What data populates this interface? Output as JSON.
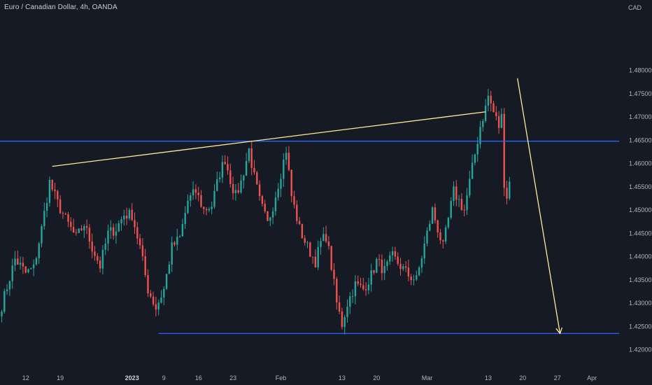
{
  "header": {
    "symbol_title": "Euro / Canadian Dollar, 4h, OANDA",
    "currency": "CAD"
  },
  "colors": {
    "background": "#161a25",
    "up": "#26a69a",
    "down": "#ef5350",
    "horizontal_line": "#2962ff",
    "trend_line": "#ffeb99",
    "text": "#b2b5be"
  },
  "chart_data": {
    "type": "candlestick",
    "title": "Euro / Canadian Dollar, 4h, OANDA",
    "y_unit": "CAD",
    "ylim": [
      1.418,
      1.4885
    ],
    "y_ticks": [
      "1.48000",
      "1.47500",
      "1.47000",
      "1.46500",
      "1.46000",
      "1.45500",
      "1.45000",
      "1.44500",
      "1.44000",
      "1.43500",
      "1.43000",
      "1.42500",
      "1.42000"
    ],
    "x_ticks": [
      {
        "label": "12",
        "idx": 9,
        "bold": false
      },
      {
        "label": "19",
        "idx": 22,
        "bold": false
      },
      {
        "label": "2023",
        "idx": 49,
        "bold": true
      },
      {
        "label": "9",
        "idx": 61,
        "bold": false
      },
      {
        "label": "16",
        "idx": 74,
        "bold": false
      },
      {
        "label": "23",
        "idx": 87,
        "bold": false
      },
      {
        "label": "Feb",
        "idx": 105,
        "bold": false
      },
      {
        "label": "13",
        "idx": 128,
        "bold": false
      },
      {
        "label": "20",
        "idx": 141,
        "bold": false
      },
      {
        "label": "Mar",
        "idx": 160,
        "bold": false
      },
      {
        "label": "13",
        "idx": 183,
        "bold": false
      },
      {
        "label": "20",
        "idx": 196,
        "bold": false
      },
      {
        "label": "27",
        "idx": 209,
        "bold": false
      },
      {
        "label": "Apr",
        "idx": 222,
        "bold": false
      }
    ],
    "anchors": [
      {
        "i": 0,
        "v": 1.4295
      },
      {
        "i": 5,
        "v": 1.4395
      },
      {
        "i": 9,
        "v": 1.4365
      },
      {
        "i": 12,
        "v": 1.4375
      },
      {
        "i": 15,
        "v": 1.446
      },
      {
        "i": 18,
        "v": 1.456
      },
      {
        "i": 21,
        "v": 1.4515
      },
      {
        "i": 24,
        "v": 1.448
      },
      {
        "i": 28,
        "v": 1.444
      },
      {
        "i": 31,
        "v": 1.447
      },
      {
        "i": 34,
        "v": 1.442
      },
      {
        "i": 37,
        "v": 1.438
      },
      {
        "i": 40,
        "v": 1.445
      },
      {
        "i": 43,
        "v": 1.446
      },
      {
        "i": 46,
        "v": 1.449
      },
      {
        "i": 49,
        "v": 1.449
      },
      {
        "i": 52,
        "v": 1.442
      },
      {
        "i": 55,
        "v": 1.433
      },
      {
        "i": 58,
        "v": 1.429
      },
      {
        "i": 61,
        "v": 1.433
      },
      {
        "i": 64,
        "v": 1.442
      },
      {
        "i": 67,
        "v": 1.444
      },
      {
        "i": 70,
        "v": 1.452
      },
      {
        "i": 73,
        "v": 1.454
      },
      {
        "i": 76,
        "v": 1.45
      },
      {
        "i": 79,
        "v": 1.451
      },
      {
        "i": 82,
        "v": 1.458
      },
      {
        "i": 84,
        "v": 1.461
      },
      {
        "i": 86,
        "v": 1.4565
      },
      {
        "i": 88,
        "v": 1.453
      },
      {
        "i": 90,
        "v": 1.456
      },
      {
        "i": 93,
        "v": 1.463
      },
      {
        "i": 95,
        "v": 1.457
      },
      {
        "i": 97,
        "v": 1.452
      },
      {
        "i": 100,
        "v": 1.447
      },
      {
        "i": 102,
        "v": 1.451
      },
      {
        "i": 105,
        "v": 1.458
      },
      {
        "i": 107,
        "v": 1.463
      },
      {
        "i": 109,
        "v": 1.453
      },
      {
        "i": 112,
        "v": 1.446
      },
      {
        "i": 115,
        "v": 1.442
      },
      {
        "i": 118,
        "v": 1.439
      },
      {
        "i": 120,
        "v": 1.443
      },
      {
        "i": 122,
        "v": 1.4445
      },
      {
        "i": 124,
        "v": 1.438
      },
      {
        "i": 126,
        "v": 1.43
      },
      {
        "i": 128,
        "v": 1.4255
      },
      {
        "i": 130,
        "v": 1.43
      },
      {
        "i": 133,
        "v": 1.434
      },
      {
        "i": 136,
        "v": 1.433
      },
      {
        "i": 139,
        "v": 1.436
      },
      {
        "i": 141,
        "v": 1.439
      },
      {
        "i": 144,
        "v": 1.437
      },
      {
        "i": 147,
        "v": 1.44
      },
      {
        "i": 150,
        "v": 1.438
      },
      {
        "i": 153,
        "v": 1.436
      },
      {
        "i": 156,
        "v": 1.435
      },
      {
        "i": 158,
        "v": 1.44
      },
      {
        "i": 160,
        "v": 1.445
      },
      {
        "i": 162,
        "v": 1.45
      },
      {
        "i": 164,
        "v": 1.446
      },
      {
        "i": 166,
        "v": 1.442
      },
      {
        "i": 168,
        "v": 1.448
      },
      {
        "i": 170,
        "v": 1.454
      },
      {
        "i": 172,
        "v": 1.452
      },
      {
        "i": 174,
        "v": 1.45
      },
      {
        "i": 176,
        "v": 1.456
      },
      {
        "i": 178,
        "v": 1.462
      },
      {
        "i": 180,
        "v": 1.468
      },
      {
        "i": 182,
        "v": 1.472
      },
      {
        "i": 183,
        "v": 1.4745
      },
      {
        "i": 185,
        "v": 1.471
      },
      {
        "i": 187,
        "v": 1.468
      },
      {
        "i": 188,
        "v": 1.47
      },
      {
        "i": 189,
        "v": 1.456
      },
      {
        "i": 190,
        "v": 1.453
      },
      {
        "i": 191,
        "v": 1.456
      }
    ],
    "annotations": {
      "resistance": {
        "price": 1.4648
      },
      "support": {
        "price": 1.4235,
        "from_idx": 59
      },
      "rising_trendline": {
        "from": {
          "i": 19,
          "v": 1.4594
        },
        "to": {
          "i": 182,
          "v": 1.4711
        }
      },
      "down_arrow": {
        "from": {
          "i": 194,
          "v": 1.4783
        },
        "to": {
          "i": 210,
          "v": 1.4235
        }
      }
    },
    "legend": "none",
    "grid": false
  }
}
